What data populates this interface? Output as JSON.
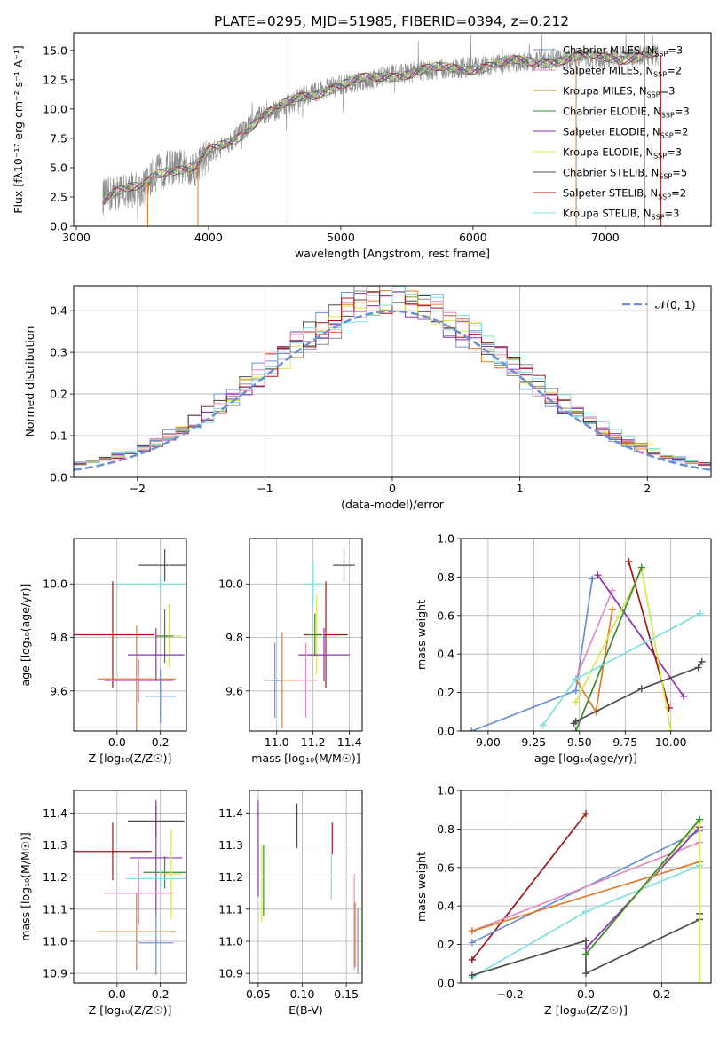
{
  "figure_title": "PLATE=0295, MJD=51985, FIBERID=0394, z=0.212",
  "colors": [
    "#6a8fd4",
    "#e07b2a",
    "#4d4d4d",
    "#e58ac0",
    "#8d2eb5",
    "#d4e84a",
    "#8c8c8c",
    "#a31515",
    "#7fdfe0",
    "#3a8a3a"
  ],
  "chart_data": [
    {
      "id": "spectrum",
      "type": "line",
      "xlabel": "wavelength [Angstrom, rest frame]",
      "ylabel": "Flux [fλ10⁻¹⁷ erg cm⁻² s⁻¹ A⁻¹]",
      "xlim": [
        2980,
        7800
      ],
      "ylim": [
        0,
        16.5
      ],
      "xticks": [
        "3000",
        "4000",
        "5000",
        "6000",
        "7000"
      ],
      "yticks": [
        "0.0",
        "2.5",
        "5.0",
        "7.5",
        "10.0",
        "12.5",
        "15.0"
      ],
      "legend_position": "right",
      "legend": [
        {
          "label": "Chabrier MILES, N",
          "sub": "SSP",
          "tail": "=3",
          "color": "#6a8fd4"
        },
        {
          "label": "Salpeter MILES, N",
          "sub": "SSP",
          "tail": "=2",
          "color": "#e58ac0"
        },
        {
          "label": "Kroupa MILES, N",
          "sub": "SSP",
          "tail": "=3",
          "color": "#b8860b"
        },
        {
          "label": "Chabrier ELODIE, N",
          "sub": "SSP",
          "tail": "=3",
          "color": "#3a8a3a"
        },
        {
          "label": "Salpeter ELODIE, N",
          "sub": "SSP",
          "tail": "=2",
          "color": "#8d2eb5"
        },
        {
          "label": "Kroupa ELODIE, N",
          "sub": "SSP",
          "tail": "=3",
          "color": "#d4e84a"
        },
        {
          "label": "Chabrier STELIB, N",
          "sub": "SSP",
          "tail": "=5",
          "color": "#4d4d4d"
        },
        {
          "label": "Salpeter STELIB, N",
          "sub": "SSP",
          "tail": "=2",
          "color": "#a31515"
        },
        {
          "label": "Kroupa STELIB, N",
          "sub": "SSP",
          "tail": "=3",
          "color": "#7fdfe0"
        }
      ],
      "continuum": {
        "x": [
          3200,
          3300,
          3500,
          3600,
          3700,
          3800,
          3900,
          4000,
          4100,
          4200,
          4300,
          4400,
          4500,
          4700,
          4900,
          5000,
          5200,
          5400,
          5600,
          5800,
          6000,
          6200,
          6400,
          6600,
          6800,
          7000,
          7200,
          7400
        ],
        "y": [
          2.5,
          2.9,
          3.2,
          4.5,
          5.0,
          5.0,
          5.0,
          6.2,
          6.8,
          7.5,
          8.5,
          9.5,
          9.8,
          11.0,
          11.8,
          12.0,
          12.5,
          13.0,
          13.2,
          13.4,
          13.6,
          13.8,
          14.0,
          14.2,
          14.3,
          14.4,
          14.5,
          14.6
        ]
      },
      "spikes_x": [
        4600,
        7300
      ],
      "breaks": [
        {
          "x": 3540,
          "color": "#e07b2a"
        },
        {
          "x": 3920,
          "color": "#e07b2a"
        },
        {
          "x": 6780,
          "color": "#e07b2a"
        },
        {
          "x": 7420,
          "color": "#a31515"
        }
      ]
    },
    {
      "id": "residual-histogram",
      "type": "histogram",
      "xlabel": "(data-model)/error",
      "ylabel": "Normed distribution",
      "xlim": [
        -2.5,
        2.5
      ],
      "ylim": [
        0,
        0.46
      ],
      "xticks": [
        "−2",
        "−1",
        "0",
        "1",
        "2"
      ],
      "yticks": [
        "0.0",
        "0.1",
        "0.2",
        "0.3",
        "0.4"
      ],
      "reference_curve": {
        "label": "𝒩(0, 1)",
        "mean": 0,
        "sigma": 1,
        "color": "#6a8fd4"
      },
      "legend_position": "top-right",
      "bin_width": 0.1
    },
    {
      "id": "age-vs-Z",
      "type": "errorbar",
      "xlabel": "Z [log₁₀(Z/Z☉)]",
      "ylabel": "age  [log₁₀(age/yr)]",
      "xlim": [
        -0.2,
        0.32
      ],
      "ylim": [
        9.45,
        10.17
      ],
      "xticks": [
        "0.0",
        "0.2"
      ],
      "yticks": [
        "9.6",
        "9.8",
        "10.0"
      ],
      "points": [
        {
          "x": 0.22,
          "xerr": 0.12,
          "y": 10.07,
          "yerr": 0.06,
          "color": "#4d4d4d"
        },
        {
          "x": 0.2,
          "xerr": 0.2,
          "y": 10.0,
          "yerr": 0.03,
          "color": "#7fdfe0"
        },
        {
          "x": -0.02,
          "xerr": 0.19,
          "y": 9.81,
          "yerr": 0.2,
          "color": "#a31515"
        },
        {
          "x": 0.24,
          "xerr": 0.06,
          "y": 9.805,
          "yerr": 0.12,
          "color": "#d4e84a"
        },
        {
          "x": 0.22,
          "xerr": 0.04,
          "y": 9.805,
          "yerr": 0.1,
          "color": "#3a8a3a"
        },
        {
          "x": 0.18,
          "xerr": 0.13,
          "y": 9.735,
          "yerr": 0.1,
          "color": "#8d2eb5"
        },
        {
          "x": 0.09,
          "xerr": 0.18,
          "y": 9.645,
          "yerr": 0.2,
          "color": "#e07b2a"
        },
        {
          "x": 0.1,
          "xerr": 0.16,
          "y": 9.638,
          "yerr": 0.08,
          "color": "#e58ac0"
        },
        {
          "x": 0.2,
          "xerr": 0.07,
          "y": 9.58,
          "yerr": 0.1,
          "color": "#6a8fd4"
        }
      ]
    },
    {
      "id": "age-vs-mass",
      "type": "errorbar",
      "xlabel": "mass [log₁₀(M/M☉)]",
      "ylabel": "",
      "xlim": [
        10.85,
        11.47
      ],
      "ylim": [
        9.45,
        10.17
      ],
      "xticks": [
        "11.0",
        "11.2",
        "11.4"
      ],
      "yticks": [
        "9.6",
        "9.8",
        "10.0"
      ],
      "points": [
        {
          "x": 11.37,
          "xerr": 0.06,
          "y": 10.07,
          "yerr": 0.06,
          "color": "#4d4d4d"
        },
        {
          "x": 11.2,
          "xerr": 0.06,
          "y": 10.0,
          "yerr": 0.08,
          "color": "#7fdfe0"
        },
        {
          "x": 11.27,
          "xerr": 0.12,
          "y": 9.81,
          "yerr": 0.2,
          "color": "#a31515"
        },
        {
          "x": 11.22,
          "xerr": 0.04,
          "y": 9.81,
          "yerr": 0.15,
          "color": "#d4e84a"
        },
        {
          "x": 11.21,
          "xerr": 0.04,
          "y": 9.81,
          "yerr": 0.08,
          "color": "#3a8a3a"
        },
        {
          "x": 11.26,
          "xerr": 0.14,
          "y": 9.735,
          "yerr": 0.1,
          "color": "#8d2eb5"
        },
        {
          "x": 11.03,
          "xerr": 0.1,
          "y": 9.64,
          "yerr": 0.18,
          "color": "#e07b2a"
        },
        {
          "x": 11.16,
          "xerr": 0.06,
          "y": 9.64,
          "yerr": 0.14,
          "color": "#e58ac0"
        },
        {
          "x": 10.99,
          "xerr": 0.04,
          "y": 9.64,
          "yerr": 0.14,
          "color": "#6a8fd4"
        }
      ]
    },
    {
      "id": "weight-vs-age",
      "type": "line",
      "xlabel": "age  [log₁₀(age/yr)]",
      "ylabel": "mass weight",
      "xlim": [
        8.85,
        10.22
      ],
      "ylim": [
        0,
        1.0
      ],
      "xticks": [
        "9.00",
        "9.25",
        "9.50",
        "9.75",
        "10.00"
      ],
      "yticks": [
        "0.0",
        "0.2",
        "0.4",
        "0.6",
        "0.8",
        "1.0"
      ],
      "series": [
        {
          "color": "#6a8fd4",
          "x": [
            8.91,
            9.48,
            9.57
          ],
          "y": [
            0.0,
            0.21,
            0.79
          ]
        },
        {
          "color": "#e58ac0",
          "x": [
            9.48,
            9.68
          ],
          "y": [
            0.27,
            0.73
          ]
        },
        {
          "color": "#e07b2a",
          "x": [
            9.48,
            9.59,
            9.68
          ],
          "y": [
            0.27,
            0.1,
            0.63
          ]
        },
        {
          "color": "#8d2eb5",
          "x": [
            9.6,
            10.07
          ],
          "y": [
            0.81,
            0.18
          ]
        },
        {
          "color": "#a31515",
          "x": [
            9.77,
            9.99
          ],
          "y": [
            0.88,
            0.12
          ]
        },
        {
          "color": "#d4e84a",
          "x": [
            9.48,
            9.84,
            10.0
          ],
          "y": [
            0.15,
            0.84,
            0.0
          ]
        },
        {
          "color": "#3a8a3a",
          "x": [
            9.48,
            9.84
          ],
          "y": [
            0.0,
            0.85
          ]
        },
        {
          "color": "#7fdfe0",
          "x": [
            9.3,
            9.48,
            10.16
          ],
          "y": [
            0.03,
            0.27,
            0.61
          ]
        },
        {
          "color": "#4d4d4d",
          "x": [
            9.47,
            9.48,
            9.84,
            10.15,
            10.17
          ],
          "y": [
            0.04,
            0.05,
            0.22,
            0.33,
            0.36
          ]
        }
      ]
    },
    {
      "id": "mass-vs-Z",
      "type": "errorbar",
      "xlabel": "Z [log₁₀(Z/Z☉)]",
      "ylabel": "mass [log₁₀(M/M☉)]",
      "xlim": [
        -0.2,
        0.32
      ],
      "ylim": [
        10.87,
        11.47
      ],
      "xticks": [
        "0.0",
        "0.2"
      ],
      "yticks": [
        "10.9",
        "11.0",
        "11.1",
        "11.2",
        "11.3",
        "11.4"
      ],
      "points": [
        {
          "x": 0.18,
          "xerr": 0.13,
          "y": 11.375,
          "yerr": 0.05,
          "color": "#4d4d4d"
        },
        {
          "x": -0.02,
          "xerr": 0.18,
          "y": 11.28,
          "yerr": 0.09,
          "color": "#a31515"
        },
        {
          "x": 0.18,
          "xerr": 0.12,
          "y": 11.26,
          "yerr": 0.18,
          "color": "#8d2eb5"
        },
        {
          "x": 0.22,
          "xerr": 0.1,
          "y": 11.215,
          "yerr": 0.05,
          "color": "#3a8a3a"
        },
        {
          "x": 0.25,
          "xerr": 0.05,
          "y": 11.21,
          "yerr": 0.14,
          "color": "#d4e84a"
        },
        {
          "x": 0.2,
          "xerr": 0.16,
          "y": 11.195,
          "yerr": 0.03,
          "color": "#7fdfe0"
        },
        {
          "x": 0.1,
          "xerr": 0.16,
          "y": 11.15,
          "yerr": 0.1,
          "color": "#e58ac0"
        },
        {
          "x": 0.09,
          "xerr": 0.18,
          "y": 11.03,
          "yerr": 0.12,
          "color": "#e07b2a"
        },
        {
          "x": 0.18,
          "xerr": 0.08,
          "y": 10.995,
          "yerr": 0.1,
          "color": "#6a8fd4"
        }
      ]
    },
    {
      "id": "mass-vs-ebv",
      "type": "errorbar",
      "xlabel": "E(B-V)",
      "ylabel": "",
      "xlim": [
        0.04,
        0.168
      ],
      "ylim": [
        10.87,
        11.47
      ],
      "xticks": [
        "0.05",
        "0.10",
        "0.15"
      ],
      "yticks": [
        "10.9",
        "11.0",
        "11.1",
        "11.2",
        "11.3",
        "11.4"
      ],
      "points": [
        {
          "x": 0.094,
          "xerr": 0,
          "y": 11.36,
          "yerr": 0.07,
          "color": "#4d4d4d"
        },
        {
          "x": 0.05,
          "xerr": 0,
          "y": 11.29,
          "yerr": 0.15,
          "color": "#8d2eb5"
        },
        {
          "x": 0.134,
          "xerr": 0,
          "y": 11.32,
          "yerr": 0.05,
          "color": "#a31515"
        },
        {
          "x": 0.133,
          "xerr": 0,
          "y": 11.2,
          "yerr": 0.07,
          "color": "#7fdfe0"
        },
        {
          "x": 0.054,
          "xerr": 0,
          "y": 11.18,
          "yerr": 0.12,
          "color": "#d4e84a"
        },
        {
          "x": 0.056,
          "xerr": 0,
          "y": 11.19,
          "yerr": 0.11,
          "color": "#3a8a3a"
        },
        {
          "x": 0.159,
          "xerr": 0,
          "y": 11.06,
          "yerr": 0.15,
          "color": "#e58ac0"
        },
        {
          "x": 0.16,
          "xerr": 0,
          "y": 11.02,
          "yerr": 0.1,
          "color": "#e07b2a"
        },
        {
          "x": 0.163,
          "xerr": 0,
          "y": 11.0,
          "yerr": 0.1,
          "color": "#6a8fd4"
        }
      ]
    },
    {
      "id": "weight-vs-Z",
      "type": "line",
      "xlabel": "Z [log₁₀(Z/Z☉)]",
      "ylabel": "mass weight",
      "xlim": [
        -0.33,
        0.33
      ],
      "ylim": [
        0,
        1.0
      ],
      "xticks": [
        "−0.2",
        "0.0",
        "0.2"
      ],
      "yticks": [
        "0.0",
        "0.2",
        "0.4",
        "0.6",
        "0.8",
        "1.0"
      ],
      "series": [
        {
          "color": "#a31515",
          "x": [
            -0.3,
            0.0
          ],
          "y": [
            0.12,
            0.88
          ]
        },
        {
          "color": "#6a8fd4",
          "x": [
            -0.3,
            0.3
          ],
          "y": [
            0.21,
            0.79
          ]
        },
        {
          "color": "#e58ac0",
          "x": [
            -0.3,
            0.3
          ],
          "y": [
            0.27,
            0.73
          ]
        },
        {
          "color": "#e07b2a",
          "x": [
            -0.3,
            0.3
          ],
          "y": [
            0.27,
            0.63
          ]
        },
        {
          "color": "#7fdfe0",
          "x": [
            -0.3,
            0.0,
            0.3
          ],
          "y": [
            0.03,
            0.37,
            0.61
          ]
        },
        {
          "color": "#4d4d4d",
          "x": [
            -0.3,
            0.0,
            0.0,
            0.3,
            0.3
          ],
          "y": [
            0.04,
            0.22,
            0.05,
            0.33,
            0.36
          ]
        },
        {
          "color": "#8d2eb5",
          "x": [
            0.0,
            0.3
          ],
          "y": [
            0.18,
            0.81
          ]
        },
        {
          "color": "#d4e84a",
          "x": [
            0.0,
            0.3,
            0.3
          ],
          "y": [
            0.15,
            0.84,
            0.0
          ]
        },
        {
          "color": "#3a8a3a",
          "x": [
            0.0,
            0.3
          ],
          "y": [
            0.15,
            0.85
          ]
        }
      ]
    }
  ]
}
